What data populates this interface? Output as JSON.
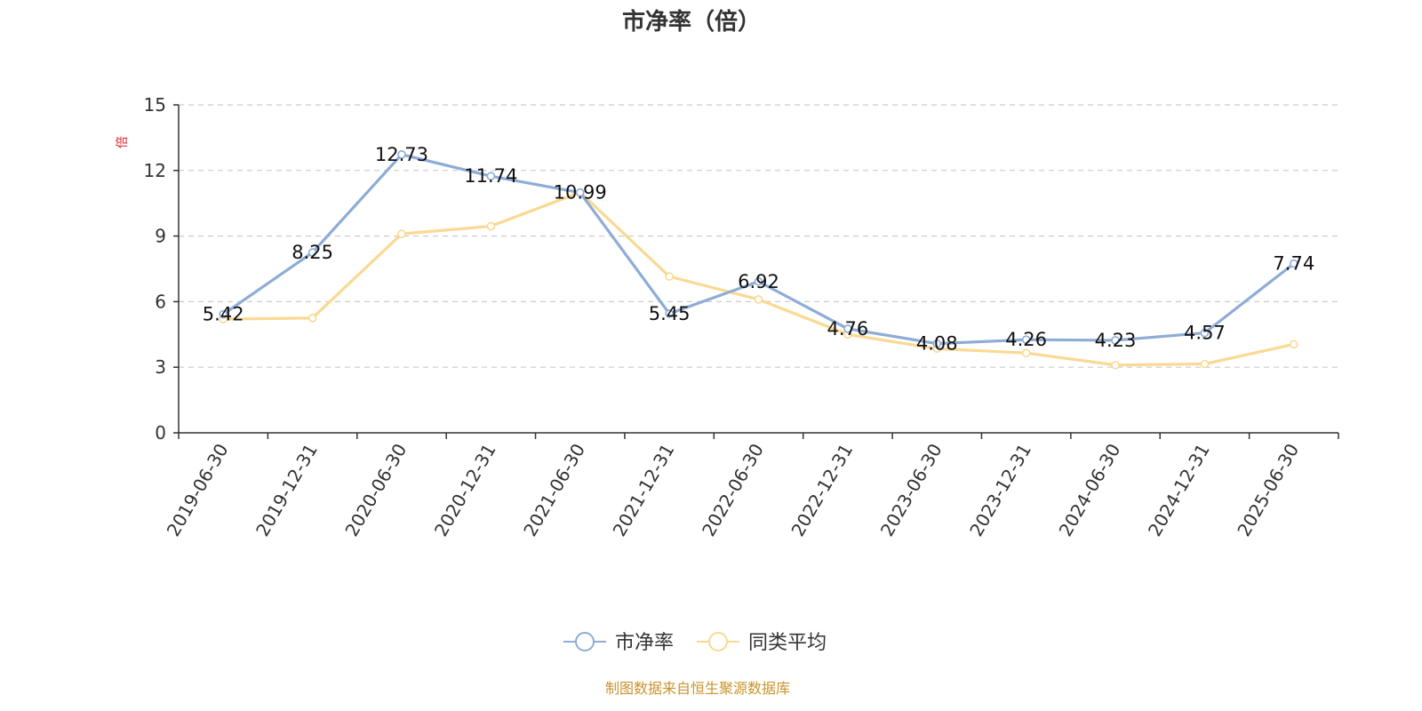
{
  "chart_data": {
    "type": "line",
    "title": "市净率（倍）",
    "ylabel": "倍",
    "xlabel": "",
    "ylim": [
      0,
      15
    ],
    "yticks": [
      0,
      3,
      6,
      9,
      12,
      15
    ],
    "grid": true,
    "legend_position": "bottom",
    "categories": [
      "2019-06-30",
      "2019-12-31",
      "2020-06-30",
      "2020-12-31",
      "2021-06-30",
      "2021-12-31",
      "2022-06-30",
      "2022-12-31",
      "2023-06-30",
      "2023-12-31",
      "2024-06-30",
      "2024-12-31",
      "2025-06-30"
    ],
    "series": [
      {
        "name": "市净率",
        "color": "#8eacd6",
        "labeled": true,
        "labels": [
          "5.42",
          "8.25",
          "12.73",
          "11.74",
          "10.99",
          "5.45",
          "6.92",
          "4.76",
          "4.08",
          "4.26",
          "4.23",
          "4.57",
          "7.74"
        ],
        "values": [
          5.42,
          8.25,
          12.73,
          11.74,
          10.99,
          5.45,
          6.92,
          4.76,
          4.08,
          4.26,
          4.23,
          4.57,
          7.74
        ]
      },
      {
        "name": "同类平均",
        "color": "#fad992",
        "labeled": false,
        "values": [
          5.2,
          5.25,
          9.1,
          9.45,
          11.0,
          7.15,
          6.1,
          4.5,
          3.85,
          3.65,
          3.1,
          3.15,
          4.05
        ]
      }
    ],
    "source": "制图数据来自恒生聚源数据库"
  }
}
